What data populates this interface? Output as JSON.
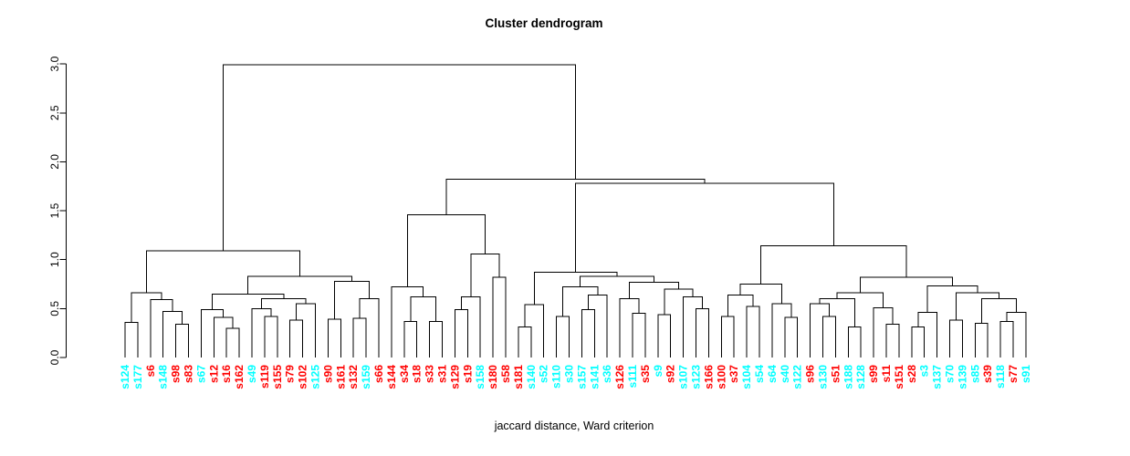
{
  "figure": {
    "title": "Cluster dendrogram",
    "xlabel": "jaccard distance, Ward criterion"
  },
  "chart_data": {
    "type": "dendrogram",
    "title": "Cluster dendrogram",
    "xlabel": "jaccard distance, Ward criterion",
    "ylabel": "",
    "ylim": [
      0,
      3.0
    ],
    "yticks": [
      "0.0",
      "0.5",
      "1.0",
      "1.5",
      "2.0",
      "2.5",
      "3.0"
    ],
    "grid": false,
    "legend": "none",
    "leaf_label_colors": {
      "red": "#FF0000",
      "cyan": "#00FFFF"
    },
    "leaves": [
      {
        "label": "s124",
        "color": "cyan"
      },
      {
        "label": "s177",
        "color": "cyan"
      },
      {
        "label": "s6",
        "color": "red"
      },
      {
        "label": "s148",
        "color": "cyan"
      },
      {
        "label": "s98",
        "color": "red"
      },
      {
        "label": "s83",
        "color": "red"
      },
      {
        "label": "s67",
        "color": "cyan"
      },
      {
        "label": "s12",
        "color": "red"
      },
      {
        "label": "s16",
        "color": "red"
      },
      {
        "label": "s162",
        "color": "red"
      },
      {
        "label": "s49",
        "color": "cyan"
      },
      {
        "label": "s119",
        "color": "red"
      },
      {
        "label": "s155",
        "color": "red"
      },
      {
        "label": "s79",
        "color": "red"
      },
      {
        "label": "s102",
        "color": "red"
      },
      {
        "label": "s125",
        "color": "cyan"
      },
      {
        "label": "s90",
        "color": "red"
      },
      {
        "label": "s161",
        "color": "red"
      },
      {
        "label": "s132",
        "color": "red"
      },
      {
        "label": "s159",
        "color": "cyan"
      },
      {
        "label": "s66",
        "color": "red"
      },
      {
        "label": "s144",
        "color": "red"
      },
      {
        "label": "s34",
        "color": "red"
      },
      {
        "label": "s18",
        "color": "red"
      },
      {
        "label": "s33",
        "color": "red"
      },
      {
        "label": "s31",
        "color": "red"
      },
      {
        "label": "s129",
        "color": "red"
      },
      {
        "label": "s19",
        "color": "red"
      },
      {
        "label": "s158",
        "color": "cyan"
      },
      {
        "label": "s180",
        "color": "red"
      },
      {
        "label": "s58",
        "color": "red"
      },
      {
        "label": "s181",
        "color": "red"
      },
      {
        "label": "s140",
        "color": "cyan"
      },
      {
        "label": "s52",
        "color": "cyan"
      },
      {
        "label": "s110",
        "color": "cyan"
      },
      {
        "label": "s30",
        "color": "cyan"
      },
      {
        "label": "s157",
        "color": "cyan"
      },
      {
        "label": "s141",
        "color": "cyan"
      },
      {
        "label": "s36",
        "color": "cyan"
      },
      {
        "label": "s126",
        "color": "red"
      },
      {
        "label": "s111",
        "color": "cyan"
      },
      {
        "label": "s35",
        "color": "red"
      },
      {
        "label": "s9",
        "color": "cyan"
      },
      {
        "label": "s92",
        "color": "red"
      },
      {
        "label": "s107",
        "color": "cyan"
      },
      {
        "label": "s123",
        "color": "cyan"
      },
      {
        "label": "s166",
        "color": "red"
      },
      {
        "label": "s100",
        "color": "red"
      },
      {
        "label": "s37",
        "color": "red"
      },
      {
        "label": "s104",
        "color": "cyan"
      },
      {
        "label": "s54",
        "color": "cyan"
      },
      {
        "label": "s64",
        "color": "cyan"
      },
      {
        "label": "s40",
        "color": "cyan"
      },
      {
        "label": "s122",
        "color": "cyan"
      },
      {
        "label": "s96",
        "color": "red"
      },
      {
        "label": "s130",
        "color": "cyan"
      },
      {
        "label": "s51",
        "color": "red"
      },
      {
        "label": "s188",
        "color": "cyan"
      },
      {
        "label": "s128",
        "color": "cyan"
      },
      {
        "label": "s99",
        "color": "red"
      },
      {
        "label": "s11",
        "color": "red"
      },
      {
        "label": "s151",
        "color": "red"
      },
      {
        "label": "s28",
        "color": "red"
      },
      {
        "label": "s3",
        "color": "cyan"
      },
      {
        "label": "s137",
        "color": "cyan"
      },
      {
        "label": "s70",
        "color": "cyan"
      },
      {
        "label": "s139",
        "color": "cyan"
      },
      {
        "label": "s85",
        "color": "cyan"
      },
      {
        "label": "s39",
        "color": "red"
      },
      {
        "label": "s118",
        "color": "cyan"
      },
      {
        "label": "s77",
        "color": "red"
      },
      {
        "label": "s91",
        "color": "cyan"
      }
    ],
    "merge_tree": [
      2.99,
      [
        1.09,
        [
          0.66,
          [
            0.36,
            0,
            1
          ],
          [
            0.59,
            2,
            [
              0.47,
              3,
              [
                0.34,
                4,
                5
              ]
            ]
          ]
        ],
        [
          0.83,
          [
            0.65,
            [
              0.49,
              6,
              [
                0.41,
                7,
                [
                  0.3,
                  8,
                  9
                ]
              ]
            ],
            [
              0.6,
              [
                0.5,
                10,
                [
                  0.42,
                  11,
                  12
                ]
              ],
              [
                0.55,
                [
                  0.38,
                  13,
                  14
                ],
                15
              ]
            ]
          ],
          [
            0.78,
            [
              0.39,
              16,
              17
            ],
            [
              0.6,
              [
                0.4,
                18,
                19
              ],
              20
            ]
          ]
        ]
      ],
      [
        1.82,
        [
          1.46,
          [
            0.72,
            21,
            [
              0.62,
              [
                0.37,
                22,
                23
              ],
              [
                0.37,
                24,
                25
              ]
            ]
          ],
          [
            1.06,
            [
              0.62,
              [
                0.49,
                26,
                27
              ],
              28
            ],
            [
              0.82,
              29,
              30
            ]
          ]
        ],
        [
          1.78,
          [
            0.87,
            [
              0.54,
              [
                0.31,
                31,
                32
              ],
              33
            ],
            [
              0.83,
              [
                0.72,
                [
                  0.42,
                  34,
                  35
                ],
                [
                  0.64,
                  [
                    0.49,
                    36,
                    37
                  ],
                  38
                ]
              ],
              [
                0.77,
                [
                  0.6,
                  39,
                  [
                    0.45,
                    40,
                    41
                  ]
                ],
                [
                  0.7,
                  [
                    0.44,
                    42,
                    43
                  ],
                  [
                    0.62,
                    44,
                    [
                      0.5,
                      45,
                      46
                    ]
                  ]
                ]
              ]
            ]
          ],
          [
            1.14,
            [
              0.75,
              [
                0.64,
                [
                  0.42,
                  47,
                  48
                ],
                [
                  0.52,
                  49,
                  50
                ]
              ],
              [
                0.55,
                51,
                [
                  0.41,
                  52,
                  53
                ]
              ]
            ],
            [
              0.82,
              [
                0.66,
                [
                  0.6,
                  [
                    0.55,
                    54,
                    [
                      0.42,
                      55,
                      56
                    ]
                  ],
                  [
                    0.31,
                    57,
                    58
                  ]
                ],
                [
                  0.51,
                  59,
                  [
                    0.34,
                    60,
                    61
                  ]
                ]
              ],
              [
                0.73,
                [
                  0.46,
                  [
                    0.31,
                    62,
                    63
                  ],
                  64
                ],
                [
                  0.66,
                  [
                    0.38,
                    65,
                    66
                  ],
                  [
                    0.6,
                    [
                      0.35,
                      67,
                      68
                    ],
                    [
                      0.46,
                      [
                        0.37,
                        69,
                        70
                      ],
                      71
                    ]
                  ]
                ]
              ]
            ]
          ]
        ]
      ]
    ]
  }
}
